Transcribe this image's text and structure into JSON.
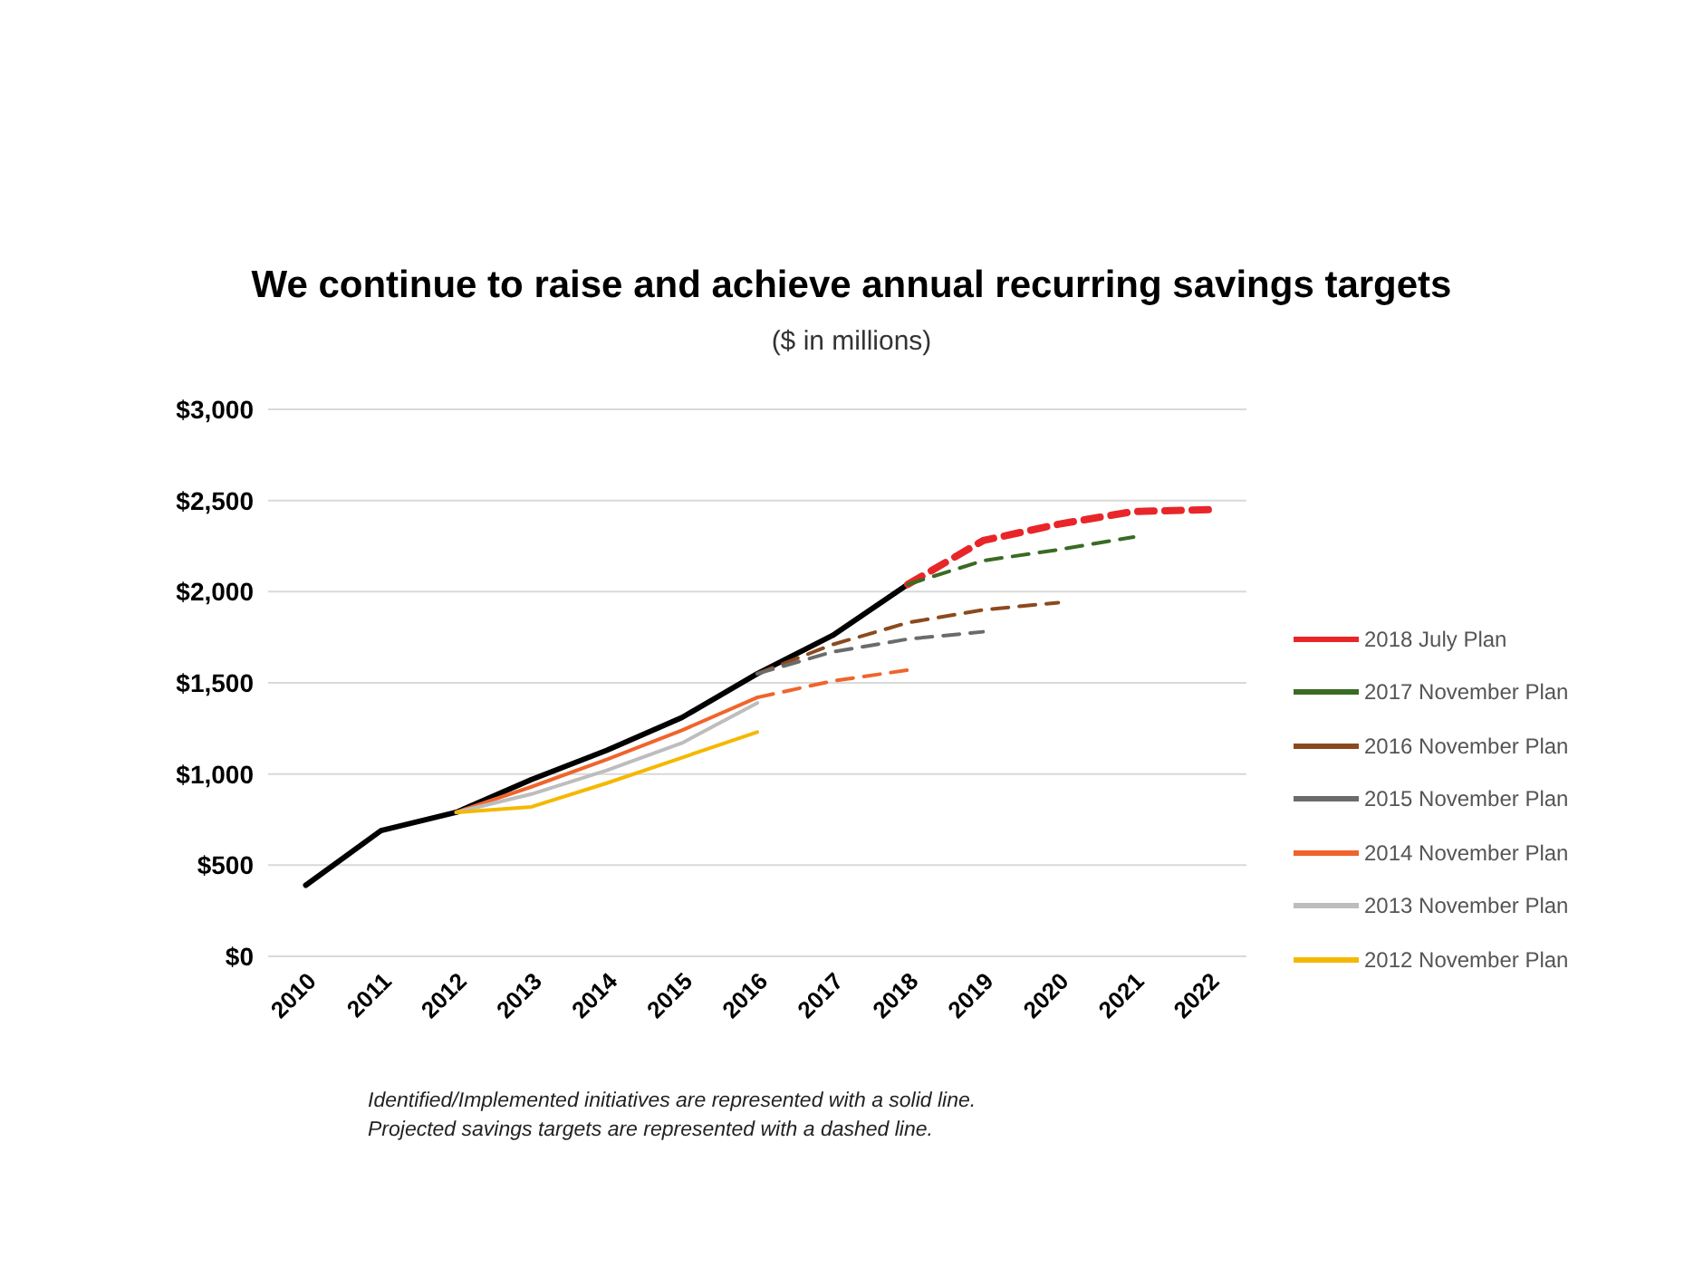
{
  "chart_data": {
    "type": "line",
    "title": "We continue to raise and achieve annual recurring savings targets",
    "subtitle": "($ in millions)",
    "categories": [
      "2010",
      "2011",
      "2012",
      "2013",
      "2014",
      "2015",
      "2016",
      "2017",
      "2018",
      "2019",
      "2020",
      "2021",
      "2022"
    ],
    "series": [
      {
        "color": "#000000",
        "line_style": "solid",
        "values": [
          390,
          690,
          790,
          970,
          1130,
          1310,
          1550,
          1760,
          2040,
          null,
          null,
          null,
          null
        ]
      },
      {
        "name": "2018 July Plan",
        "color": "#e8262a",
        "line_style": "dashed",
        "values": [
          null,
          null,
          null,
          null,
          null,
          null,
          null,
          null,
          2040,
          2280,
          2370,
          2440,
          2450
        ]
      },
      {
        "name": "2017 November Plan",
        "color": "#3a6b24",
        "line_style": "dashed",
        "values": [
          null,
          null,
          null,
          null,
          null,
          null,
          null,
          null,
          2040,
          2170,
          2230,
          2300,
          null
        ]
      },
      {
        "name": "2016 November Plan",
        "color": "#8b4a1e",
        "line_style": "dashed",
        "values": [
          null,
          null,
          null,
          null,
          null,
          null,
          1550,
          1710,
          1830,
          1900,
          1940,
          null,
          null
        ]
      },
      {
        "name": "2015 November Plan",
        "color": "#6b6b6b",
        "line_style": "dashed",
        "values": [
          null,
          null,
          null,
          null,
          null,
          null,
          1550,
          1670,
          1740,
          1780,
          null,
          null,
          null
        ]
      },
      {
        "name": "2014 November Plan",
        "color": "#f0642c",
        "line_style": "solid",
        "values": [
          null,
          null,
          790,
          930,
          1080,
          1240,
          1420,
          null,
          null,
          null,
          null,
          null,
          null
        ]
      },
      {
        "color": "#f0642c",
        "line_style": "dashed",
        "values": [
          null,
          null,
          null,
          null,
          null,
          null,
          1420,
          1510,
          1570,
          null,
          null,
          null,
          null
        ]
      },
      {
        "name": "2013 November Plan",
        "color": "#bdbdbd",
        "line_style": "solid",
        "values": [
          null,
          null,
          790,
          890,
          1020,
          1170,
          1390,
          null,
          null,
          null,
          null,
          null,
          null
        ]
      },
      {
        "name": "2012 November Plan",
        "color": "#f5b800",
        "line_style": "solid",
        "values": [
          null,
          null,
          790,
          820,
          950,
          1090,
          1230,
          null,
          null,
          null,
          null,
          null,
          null
        ]
      }
    ],
    "ylim": [
      0,
      3000
    ],
    "yticks": [
      {
        "value": 0,
        "label": "$0"
      },
      {
        "value": 500,
        "label": "$500"
      },
      {
        "value": 1000,
        "label": "$1,000"
      },
      {
        "value": 1500,
        "label": "$1,500"
      },
      {
        "value": 2000,
        "label": "$2,000"
      },
      {
        "value": 2500,
        "label": "$2,500"
      },
      {
        "value": 3000,
        "label": "$3,000"
      }
    ],
    "grid": "y",
    "legend": "right",
    "marker": "none",
    "annotations": [
      "Identified/Implemented initiatives are represented with a solid line.",
      "Projected savings targets are represented with a dashed line."
    ]
  }
}
